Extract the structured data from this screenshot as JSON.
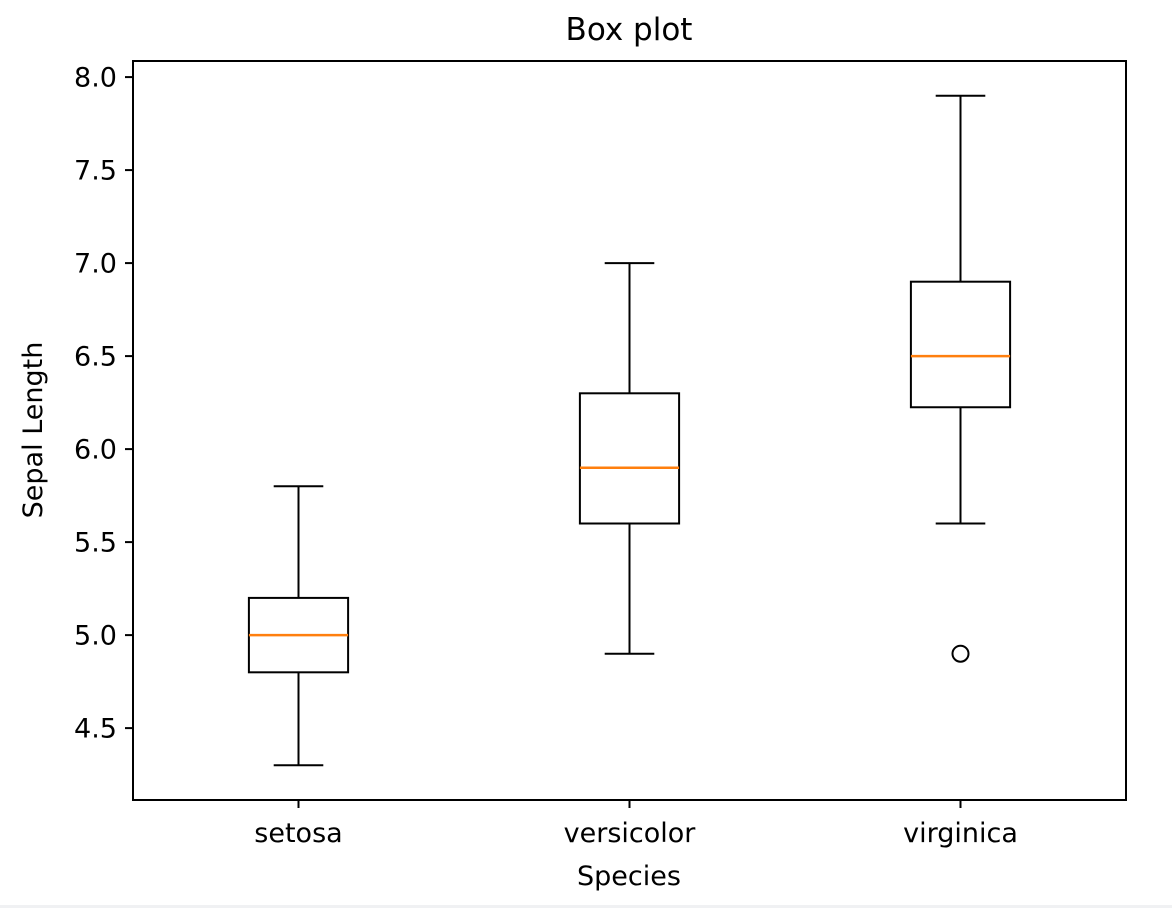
{
  "figure": {
    "background": "#ffffff"
  },
  "chart_data": {
    "type": "boxplot",
    "title": "Box plot",
    "xlabel": "Species",
    "ylabel": "Sepal Length",
    "categories": [
      "setosa",
      "versicolor",
      "virginica"
    ],
    "yticks": [
      4.5,
      5.0,
      5.5,
      6.0,
      6.5,
      7.0,
      7.5,
      8.0
    ],
    "ylim": [
      4.1135,
      8.0865
    ],
    "grid": false,
    "legend": "none",
    "boxes": [
      {
        "category": "setosa",
        "whisker_low": 4.3,
        "q1": 4.8,
        "median": 5.0,
        "q3": 5.2,
        "whisker_high": 5.8,
        "outliers": []
      },
      {
        "category": "versicolor",
        "whisker_low": 4.9,
        "q1": 5.6,
        "median": 5.9,
        "q3": 6.3,
        "whisker_high": 7.0,
        "outliers": []
      },
      {
        "category": "virginica",
        "whisker_low": 5.6,
        "q1": 6.225,
        "median": 6.5,
        "q3": 6.9,
        "whisker_high": 7.9,
        "outliers": [
          4.9
        ]
      }
    ],
    "colors": {
      "line": "#000000",
      "median": "#ff7f0e",
      "background": "#ffffff"
    }
  }
}
